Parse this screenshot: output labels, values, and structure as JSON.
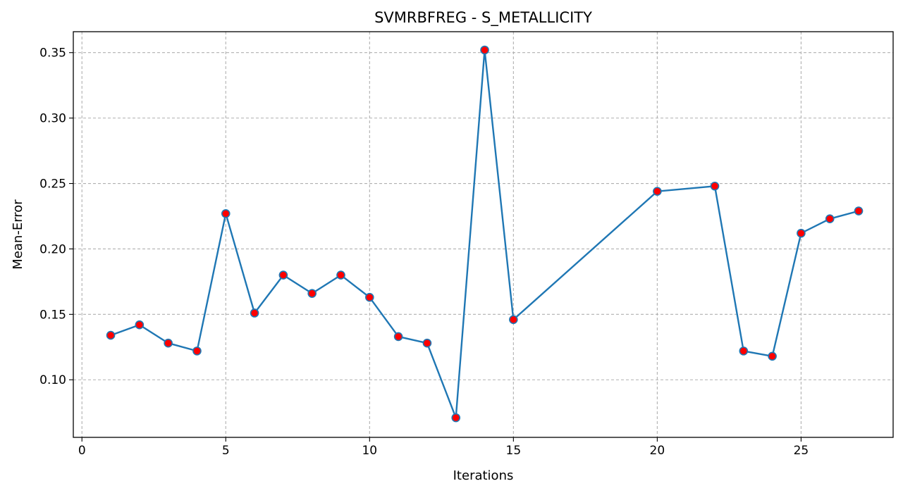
{
  "chart_data": {
    "type": "line",
    "title": "SVMRBFREG - S_METALLICITY",
    "xlabel": "Iterations",
    "ylabel": "Mean-Error",
    "xlim": [
      -0.3,
      28.2
    ],
    "ylim": [
      0.056,
      0.366
    ],
    "xticks": [
      0,
      5,
      10,
      15,
      20,
      25
    ],
    "yticks": [
      0.1,
      0.15,
      0.2,
      0.25,
      0.3,
      0.35
    ],
    "grid": true,
    "line_color": "#1f77b4",
    "marker_color": "#ff0000",
    "marker_edge_color": "#1f77b4",
    "x": [
      1,
      2,
      3,
      4,
      5,
      6,
      7,
      8,
      9,
      10,
      11,
      12,
      13,
      14,
      15,
      20,
      22,
      23,
      24,
      25,
      26,
      27
    ],
    "series": [
      {
        "values": [
          0.134,
          0.142,
          0.128,
          0.122,
          0.227,
          0.151,
          0.18,
          0.166,
          0.18,
          0.163,
          0.133,
          0.128,
          0.071,
          0.352,
          0.146,
          0.244,
          0.248,
          0.122,
          0.118,
          0.212,
          0.223,
          0.229
        ]
      }
    ]
  }
}
